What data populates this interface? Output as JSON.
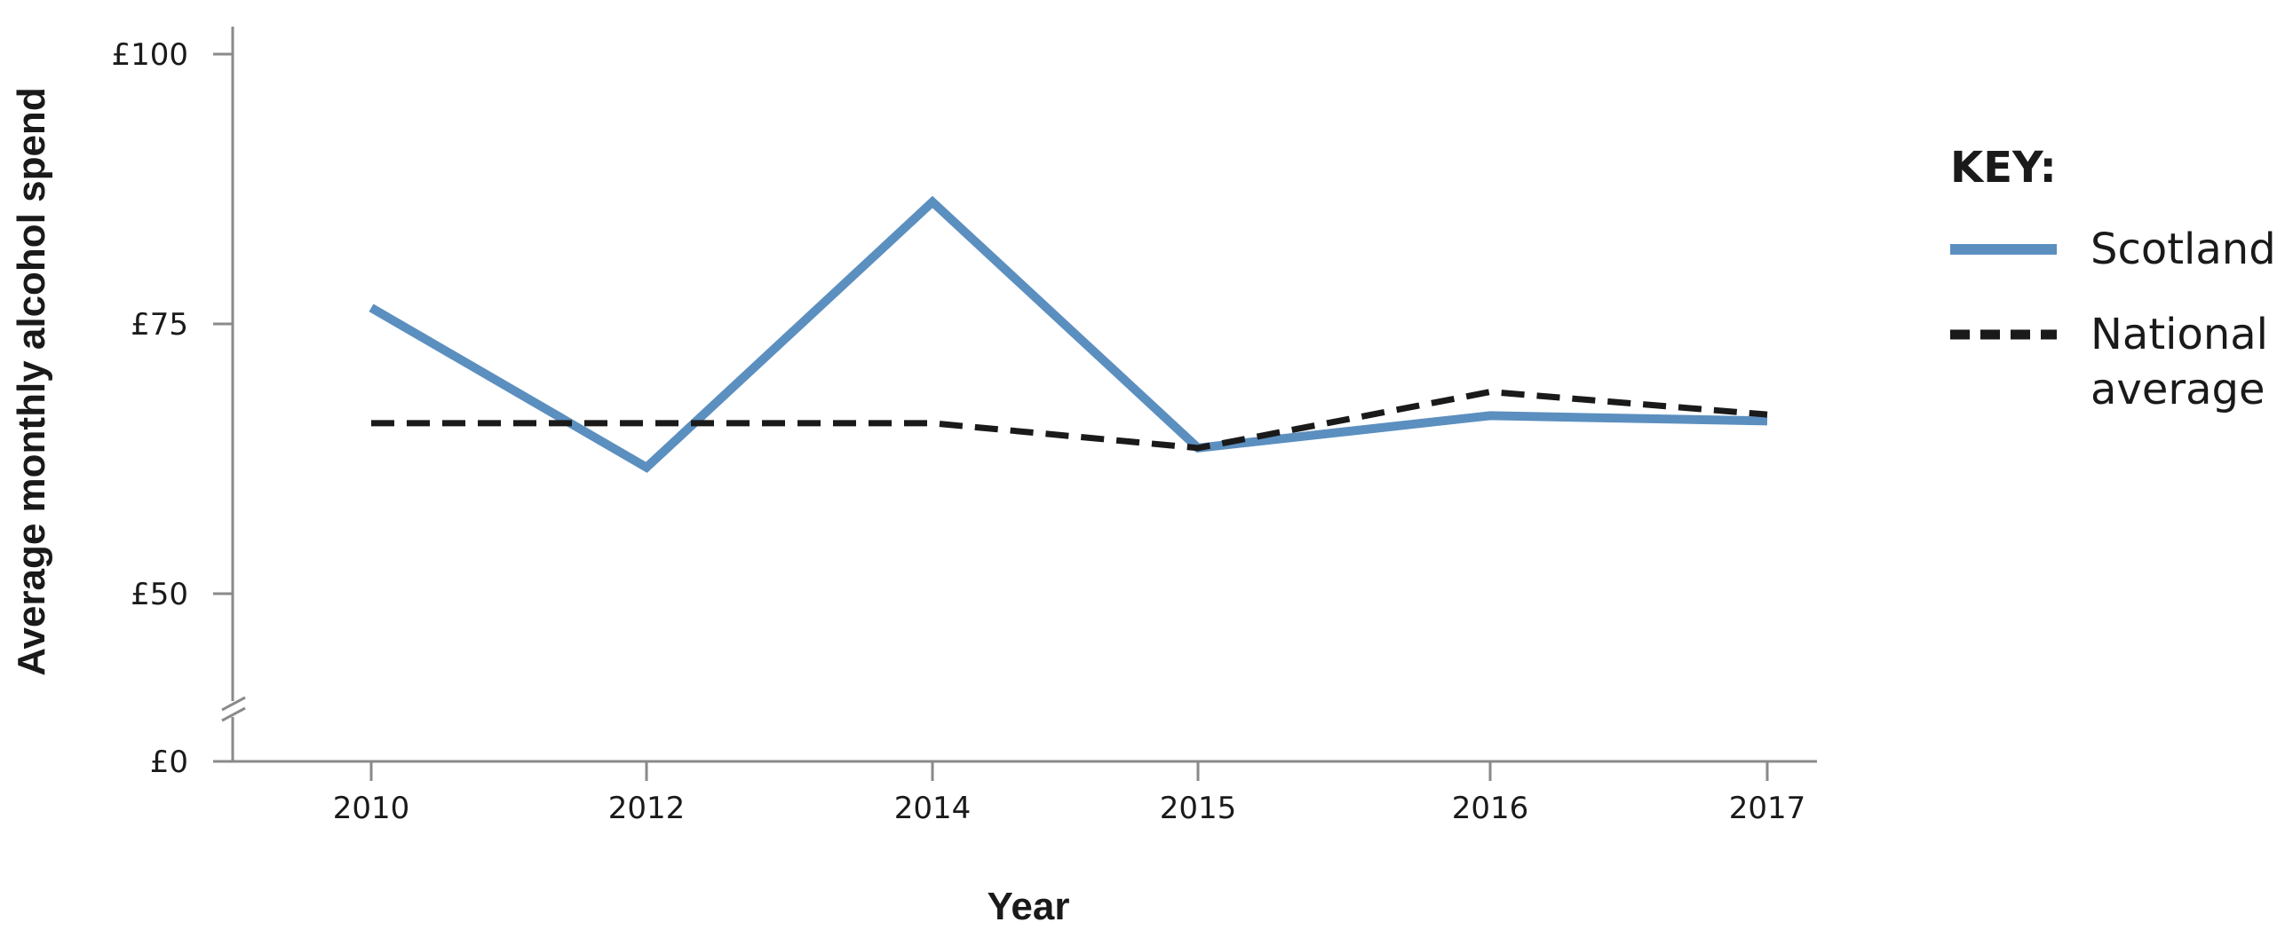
{
  "chart_data": {
    "type": "line",
    "xlabel": "Year",
    "ylabel": "Average monthly alcohol spend",
    "categories": [
      "2010",
      "2012",
      "2014",
      "2015",
      "2016",
      "2017"
    ],
    "yticks": [
      "£100",
      "£75",
      "£50",
      "£0"
    ],
    "y_tick_values": [
      100,
      75,
      50,
      0
    ],
    "axis_break": true,
    "legend": {
      "title": "KEY",
      "title_suffix": ":",
      "position": "right"
    },
    "series": [
      {
        "name": "Scotland",
        "color": "#5b8fbf",
        "style": "solid",
        "values": [
          76.5,
          61.7,
          86.3,
          63.5,
          66.5,
          66.0
        ]
      },
      {
        "name": "National average",
        "name_lines": [
          "National",
          "average"
        ],
        "color": "#1a1a1a",
        "style": "dashed",
        "values": [
          65.8,
          65.8,
          65.8,
          63.5,
          68.7,
          66.6
        ]
      }
    ]
  }
}
